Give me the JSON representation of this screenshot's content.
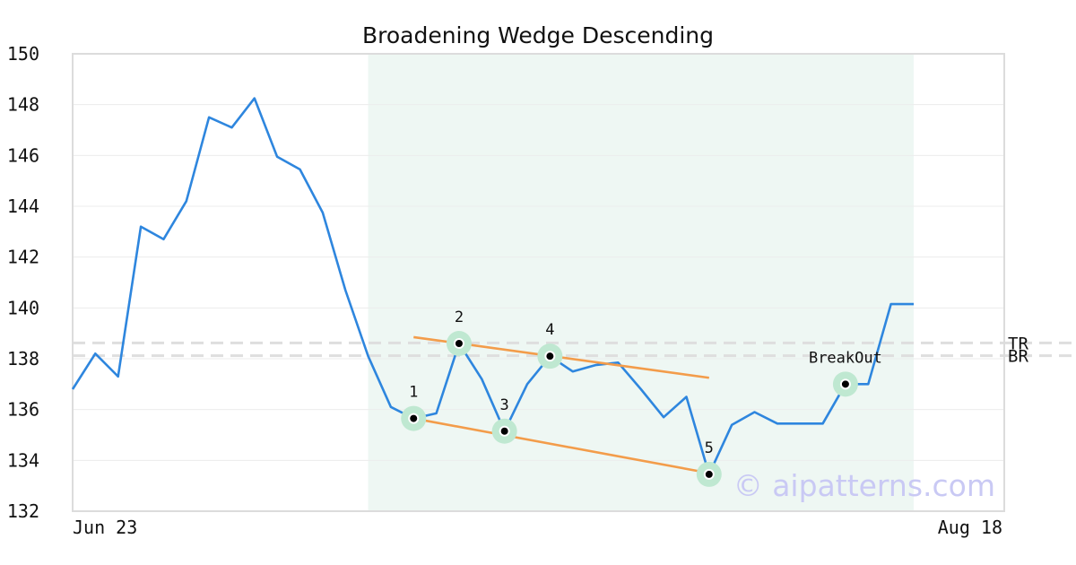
{
  "chart_data": {
    "type": "line",
    "title": "Broadening Wedge Descending",
    "xlabel": "",
    "ylabel": "",
    "ylim": [
      132,
      150
    ],
    "y_ticks": [
      "132",
      "134",
      "136",
      "138",
      "140",
      "142",
      "144",
      "146",
      "148",
      "150"
    ],
    "x_tick_labels": [
      "Jun 23",
      "Aug 18"
    ],
    "grid": true,
    "series": [
      {
        "color": "#2e86de",
        "values": [
          136.8,
          138.2,
          137.3,
          143.2,
          142.7,
          144.2,
          147.5,
          147.1,
          148.25,
          145.95,
          145.45,
          143.75,
          140.7,
          138.1,
          136.1,
          135.65,
          135.85,
          138.6,
          137.2,
          135.15,
          137.0,
          138.1,
          137.5,
          137.75,
          137.85,
          136.8,
          135.7,
          136.5,
          133.45,
          135.4,
          135.9,
          135.45,
          135.45,
          135.45,
          137.0,
          137.0,
          140.15,
          140.15
        ]
      }
    ],
    "highlight": {
      "start_index": 13,
      "end_index": 37,
      "color": "#eef7f3"
    },
    "pattern_points": [
      {
        "label": "1",
        "index": 15,
        "value": 135.65
      },
      {
        "label": "2",
        "index": 17,
        "value": 138.6
      },
      {
        "label": "3",
        "index": 19,
        "value": 135.15
      },
      {
        "label": "4",
        "index": 21,
        "value": 138.1
      },
      {
        "label": "5",
        "index": 28,
        "value": 133.45
      }
    ],
    "breakout": {
      "label": "BreakOut",
      "index": 34,
      "value": 137.0
    },
    "trend_lines": [
      {
        "name": "upper",
        "color": "#f39c4a",
        "from": {
          "index": 15,
          "value": 138.85
        },
        "to": {
          "index": 28,
          "value": 137.25
        }
      },
      {
        "name": "lower",
        "color": "#f39c4a",
        "from": {
          "index": 15,
          "value": 135.65
        },
        "to": {
          "index": 28,
          "value": 133.5
        }
      }
    ],
    "reference_lines": [
      {
        "label": "TR",
        "value": 138.62
      },
      {
        "label": "BR",
        "value": 138.12
      }
    ],
    "watermark": "© aipatterns.com"
  }
}
